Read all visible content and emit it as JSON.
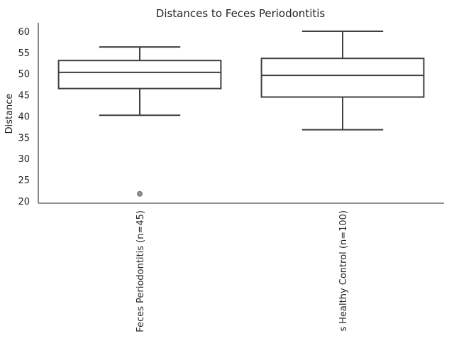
{
  "chart_data": {
    "type": "box",
    "title": "Distances to Feces Periodontitis",
    "ylabel": "Distance",
    "xlabel": "",
    "ylim": [
      19.5,
      62
    ],
    "yticks": [
      20,
      25,
      30,
      35,
      40,
      45,
      50,
      55,
      60
    ],
    "grid": false,
    "categories": [
      "Feces Periodontitis (n=45)",
      "s Healthy Control (n=100)"
    ],
    "boxes": [
      {
        "category": "Feces Periodontitis (n=45)",
        "whisker_low": 40.2,
        "q1": 46.5,
        "median": 50.3,
        "q3": 53.1,
        "whisker_high": 56.3,
        "outliers": [
          21.7
        ]
      },
      {
        "category": "s Healthy Control (n=100)",
        "whisker_low": 36.8,
        "q1": 44.5,
        "median": 49.6,
        "q3": 53.6,
        "whisker_high": 60.0,
        "outliers": []
      }
    ],
    "colors": {
      "line": "#3f3f3f",
      "axis": "#262626",
      "outlier": "#8f8f8f"
    }
  }
}
